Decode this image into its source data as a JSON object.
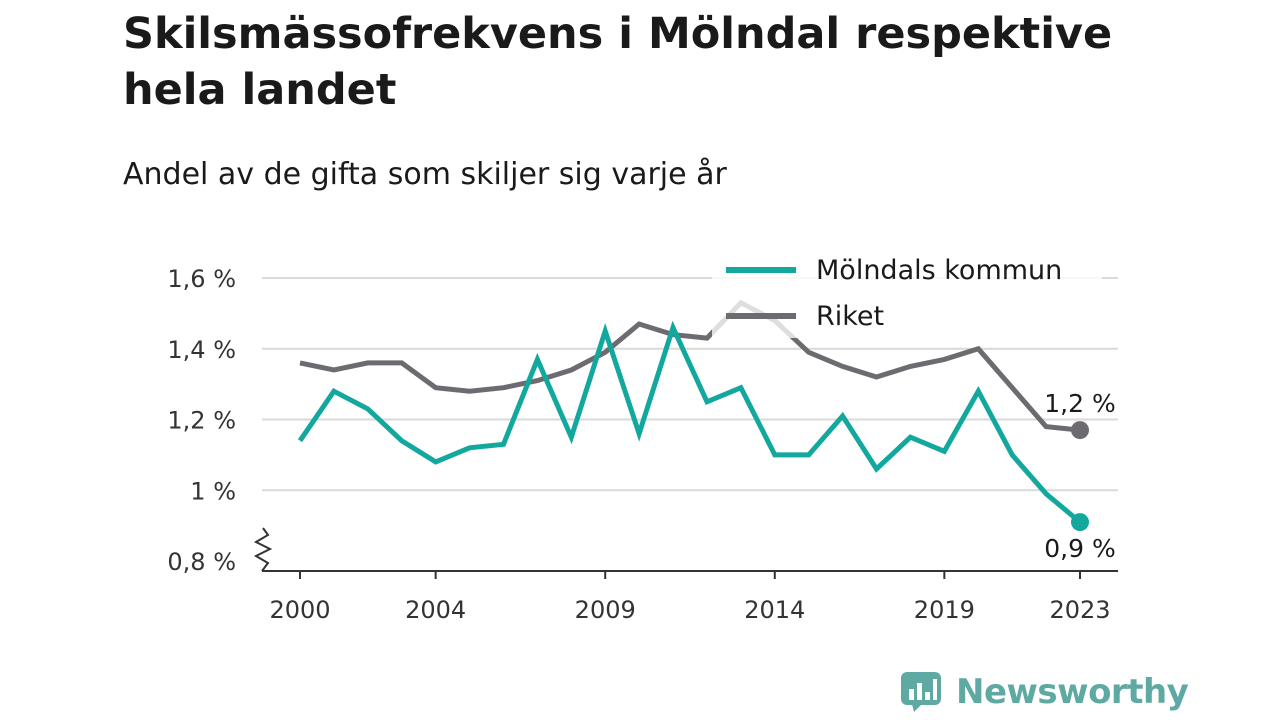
{
  "title": "Skilsmässofrekvens i Mölndal respektive hela landet",
  "subtitle": "Andel av de gifta som skiljer sig varje år",
  "brand": {
    "name": "Newsworthy",
    "logo_icon": "chart-speech-bubble-icon"
  },
  "colors": {
    "molndal": "#13a89e",
    "riket": "#6d6b70",
    "grid": "#d9d9d9",
    "axis": "#333333"
  },
  "chart_data": {
    "type": "line",
    "x": [
      2000,
      2001,
      2002,
      2003,
      2004,
      2005,
      2006,
      2007,
      2008,
      2009,
      2010,
      2011,
      2012,
      2013,
      2014,
      2015,
      2016,
      2017,
      2018,
      2019,
      2020,
      2021,
      2022,
      2023
    ],
    "x_ticks": [
      2000,
      2004,
      2009,
      2014,
      2019,
      2023
    ],
    "y_ticks": [
      {
        "value": 0.8,
        "label": "0,8 %"
      },
      {
        "value": 1.0,
        "label": "1 %"
      },
      {
        "value": 1.2,
        "label": "1,2 %"
      },
      {
        "value": 1.4,
        "label": "1,4 %"
      },
      {
        "value": 1.6,
        "label": "1,6 %"
      }
    ],
    "ylim": [
      0.8,
      1.6
    ],
    "y_axis_break": true,
    "grid": true,
    "legend_position": "top-right",
    "series": [
      {
        "name": "Mölndals kommun",
        "color": "#13a89e",
        "values": [
          1.14,
          1.28,
          1.23,
          1.14,
          1.08,
          1.12,
          1.13,
          1.37,
          1.15,
          1.45,
          1.16,
          1.46,
          1.25,
          1.29,
          1.1,
          1.1,
          1.21,
          1.06,
          1.15,
          1.11,
          1.28,
          1.1,
          0.99,
          0.91
        ],
        "end_label": "0,9 %"
      },
      {
        "name": "Riket",
        "color": "#6d6b70",
        "values": [
          1.36,
          1.34,
          1.36,
          1.36,
          1.29,
          1.28,
          1.29,
          1.31,
          1.34,
          1.39,
          1.47,
          1.44,
          1.43,
          1.53,
          1.48,
          1.39,
          1.35,
          1.32,
          1.35,
          1.37,
          1.4,
          1.29,
          1.18,
          1.17
        ],
        "end_label": "1,2 %"
      }
    ]
  }
}
